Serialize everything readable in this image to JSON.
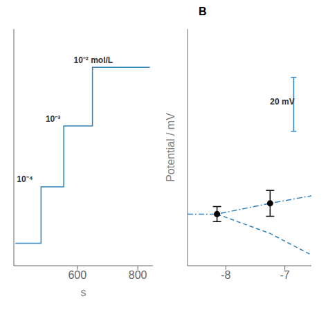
{
  "chart_data": [
    {
      "type": "line",
      "x_label": "s",
      "x": [
        395,
        480,
        480,
        555,
        555,
        650,
        650,
        840
      ],
      "values": [
        0.1,
        0.1,
        0.35,
        0.35,
        0.62,
        0.62,
        0.88,
        0.88
      ],
      "xlim": [
        390,
        850
      ],
      "ylim": [
        0.0,
        1.05
      ],
      "xticks": [
        600,
        800
      ],
      "tick_labels": "x",
      "annotations": [
        {
          "text": "10⁻⁴",
          "x": 400,
          "y": 0.37
        },
        {
          "text": "10⁻³",
          "x": 495,
          "y": 0.64
        },
        {
          "text": "10⁻² mol/L",
          "x": 588,
          "y": 0.9
        }
      ]
    },
    {
      "type": "line",
      "title": "B",
      "y_label": "Potential / mV",
      "xlim": [
        -8.65,
        -6.55
      ],
      "ylim": [
        -1.2,
        1.0
      ],
      "xticks": [
        -8,
        -7
      ],
      "tick_labels": "x",
      "series": [
        {
          "type": "line",
          "line_style": "dashdot",
          "x": [
            -8.65,
            -8.15,
            -7.25,
            -6.55
          ],
          "values": [
            -0.72,
            -0.72,
            -0.62,
            -0.55
          ]
        },
        {
          "type": "line",
          "line_style": "dashed",
          "x": [
            -8.15,
            -7.25,
            -6.55
          ],
          "values": [
            -0.72,
            -0.9,
            -1.1
          ]
        },
        {
          "type": "scatter",
          "marker": "circle",
          "x": [
            -8.15,
            -7.25
          ],
          "values": [
            -0.72,
            -0.62
          ],
          "errors": [
            0.07,
            0.12
          ]
        },
        {
          "type": "scale_bar",
          "x": [
            -6.85,
            -6.85
          ],
          "values": [
            0.05,
            0.55
          ]
        }
      ],
      "annotations": [
        {
          "text": "20 mV",
          "x": -7.25,
          "y": 0.3
        }
      ]
    }
  ]
}
